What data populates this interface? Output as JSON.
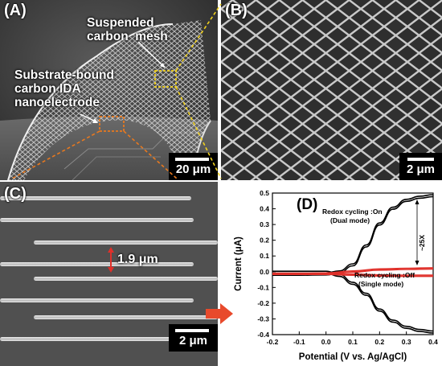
{
  "panels": {
    "A": {
      "label": "(A)",
      "annotations": {
        "suspended": "Suspended\ncarbon  mesh",
        "substrate": "Substrate-bound\ncarbon IDA\nnanoelectrode"
      },
      "scale_bar": "20 μm",
      "colors": {
        "inset_box_yellow": "#f2d21e",
        "inset_box_orange": "#e8791f"
      }
    },
    "B": {
      "label": "(B)",
      "scale_bar": "2 μm"
    },
    "C": {
      "label": "(C)",
      "gap_label": "1.9 μm",
      "scale_bar": "2 μm",
      "colors": {
        "gap_arrow": "#e0302a",
        "pointer_arrow": "#e84a2c"
      }
    },
    "D": {
      "label": "(D)"
    }
  },
  "chart_data": {
    "type": "line",
    "panel_label": "(D)",
    "xlabel": "Potential (V vs. Ag/AgCl)",
    "ylabel": "Current (μA)",
    "xlim": [
      -0.2,
      0.4
    ],
    "ylim": [
      -0.4,
      0.5
    ],
    "xticks": [
      "-0.2",
      "-0.1",
      "0.0",
      "0.1",
      "0.2",
      "0.3",
      "0.4"
    ],
    "yticks": [
      "-0.4",
      "-0.3",
      "-0.2",
      "-0.1",
      "0.0",
      "0.1",
      "0.2",
      "0.3",
      "0.4",
      "0.5"
    ],
    "grid": false,
    "annotations": {
      "on_line1": "Redox cycling :On",
      "on_line2": "(Dual mode)",
      "off_line1": "Redox cycling :Off",
      "off_line2": "(Single mode)",
      "ratio": "~25X"
    },
    "series": [
      {
        "color": "#000000",
        "x": [
          -0.2,
          -0.1,
          0.0,
          0.05,
          0.1,
          0.15,
          0.2,
          0.25,
          0.3,
          0.35,
          0.4
        ],
        "y": [
          -0.01,
          -0.01,
          -0.008,
          0.005,
          0.05,
          0.17,
          0.31,
          0.41,
          0.46,
          0.48,
          0.49
        ]
      },
      {
        "color": "#000000",
        "x": [
          -0.2,
          -0.1,
          0.0,
          0.05,
          0.1,
          0.15,
          0.2,
          0.25,
          0.3,
          0.35,
          0.4
        ],
        "y": [
          -0.01,
          -0.01,
          -0.01,
          -0.03,
          -0.08,
          -0.15,
          -0.25,
          -0.32,
          -0.36,
          -0.38,
          -0.39
        ]
      },
      {
        "color": "#e0302a",
        "x": [
          -0.2,
          -0.1,
          0.0,
          0.1,
          0.2,
          0.3,
          0.4
        ],
        "y": [
          -0.01,
          -0.01,
          -0.008,
          0.005,
          0.018,
          0.022,
          0.025
        ]
      },
      {
        "color": "#e0302a",
        "x": [
          -0.2,
          -0.1,
          0.0,
          0.1,
          0.2,
          0.3,
          0.4
        ],
        "y": [
          -0.01,
          -0.01,
          -0.01,
          -0.015,
          -0.02,
          -0.022,
          -0.022
        ]
      }
    ]
  }
}
